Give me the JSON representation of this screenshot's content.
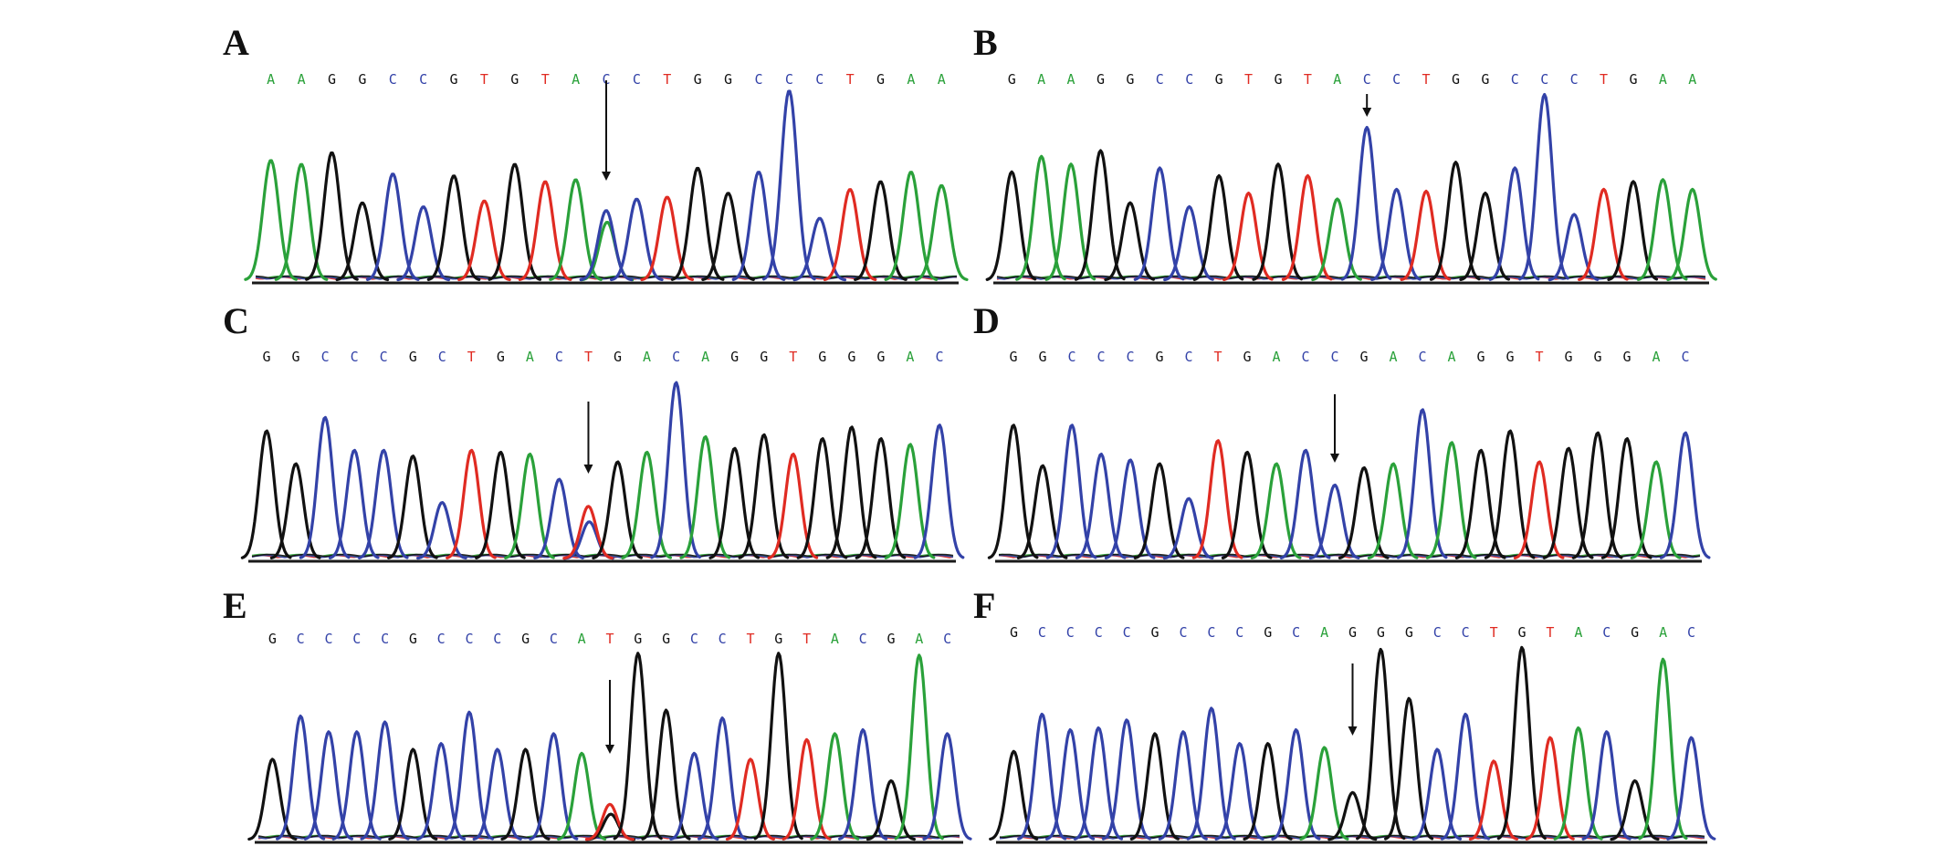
{
  "colors": {
    "A": "#2aa13a",
    "C": "#3342a8",
    "G": "#111111",
    "T": "#e02b22"
  },
  "panels": [
    {
      "id": "A",
      "label": "A",
      "sequence": [
        "A",
        "A",
        "G",
        "G",
        "C",
        "C",
        "G",
        "T",
        "G",
        "T",
        "A",
        "C",
        "C",
        "T",
        "G",
        "G",
        "C",
        "C",
        "C",
        "T",
        "G",
        "A",
        "A"
      ],
      "peaks": [
        {
          "b": "A",
          "h": 0.62
        },
        {
          "b": "A",
          "h": 0.6
        },
        {
          "b": "G",
          "h": 0.66
        },
        {
          "b": "G",
          "h": 0.4
        },
        {
          "b": "C",
          "h": 0.55
        },
        {
          "b": "C",
          "h": 0.38
        },
        {
          "b": "G",
          "h": 0.54
        },
        {
          "b": "T",
          "h": 0.41
        },
        {
          "b": "G",
          "h": 0.6
        },
        {
          "b": "T",
          "h": 0.51
        },
        {
          "b": "A",
          "h": 0.52
        },
        {
          "b": "C",
          "h": 0.36,
          "sec": {
            "b": "A",
            "h": 0.3
          }
        },
        {
          "b": "C",
          "h": 0.42
        },
        {
          "b": "T",
          "h": 0.43
        },
        {
          "b": "G",
          "h": 0.58
        },
        {
          "b": "G",
          "h": 0.45
        },
        {
          "b": "C",
          "h": 0.56
        },
        {
          "b": "C",
          "h": 0.98
        },
        {
          "b": "C",
          "h": 0.32
        },
        {
          "b": "T",
          "h": 0.47
        },
        {
          "b": "G",
          "h": 0.51
        },
        {
          "b": "A",
          "h": 0.56
        },
        {
          "b": "A",
          "h": 0.49
        }
      ],
      "arrow_index": 11
    },
    {
      "id": "B",
      "label": "B",
      "sequence": [
        "G",
        "A",
        "A",
        "G",
        "G",
        "C",
        "C",
        "G",
        "T",
        "G",
        "T",
        "A",
        "C",
        "C",
        "T",
        "G",
        "G",
        "C",
        "C",
        "C",
        "T",
        "G",
        "A",
        "A"
      ],
      "peaks": [
        {
          "b": "G",
          "h": 0.56
        },
        {
          "b": "A",
          "h": 0.64
        },
        {
          "b": "A",
          "h": 0.6
        },
        {
          "b": "G",
          "h": 0.67
        },
        {
          "b": "G",
          "h": 0.4
        },
        {
          "b": "C",
          "h": 0.58
        },
        {
          "b": "C",
          "h": 0.38
        },
        {
          "b": "G",
          "h": 0.54
        },
        {
          "b": "T",
          "h": 0.45
        },
        {
          "b": "G",
          "h": 0.6
        },
        {
          "b": "T",
          "h": 0.54
        },
        {
          "b": "A",
          "h": 0.42
        },
        {
          "b": "C",
          "h": 0.79
        },
        {
          "b": "C",
          "h": 0.47
        },
        {
          "b": "T",
          "h": 0.46
        },
        {
          "b": "G",
          "h": 0.61
        },
        {
          "b": "G",
          "h": 0.45
        },
        {
          "b": "C",
          "h": 0.58
        },
        {
          "b": "C",
          "h": 0.96
        },
        {
          "b": "C",
          "h": 0.34
        },
        {
          "b": "T",
          "h": 0.47
        },
        {
          "b": "G",
          "h": 0.51
        },
        {
          "b": "A",
          "h": 0.52
        },
        {
          "b": "A",
          "h": 0.47
        }
      ],
      "arrow_index": 12
    },
    {
      "id": "C",
      "label": "C",
      "sequence": [
        "G",
        "G",
        "C",
        "C",
        "C",
        "G",
        "C",
        "T",
        "G",
        "A",
        "C",
        "T",
        "G",
        "A",
        "C",
        "A",
        "G",
        "G",
        "T",
        "G",
        "G",
        "G",
        "A",
        "C"
      ],
      "peaks": [
        {
          "b": "G",
          "h": 0.66
        },
        {
          "b": "G",
          "h": 0.49
        },
        {
          "b": "C",
          "h": 0.73
        },
        {
          "b": "C",
          "h": 0.56
        },
        {
          "b": "C",
          "h": 0.56
        },
        {
          "b": "G",
          "h": 0.53
        },
        {
          "b": "C",
          "h": 0.29
        },
        {
          "b": "T",
          "h": 0.56
        },
        {
          "b": "G",
          "h": 0.55
        },
        {
          "b": "A",
          "h": 0.54
        },
        {
          "b": "C",
          "h": 0.41
        },
        {
          "b": "T",
          "h": 0.27,
          "sec": {
            "b": "C",
            "h": 0.19
          }
        },
        {
          "b": "G",
          "h": 0.5
        },
        {
          "b": "A",
          "h": 0.55
        },
        {
          "b": "C",
          "h": 0.91
        },
        {
          "b": "A",
          "h": 0.63
        },
        {
          "b": "G",
          "h": 0.57
        },
        {
          "b": "G",
          "h": 0.64
        },
        {
          "b": "T",
          "h": 0.54
        },
        {
          "b": "G",
          "h": 0.62
        },
        {
          "b": "G",
          "h": 0.68
        },
        {
          "b": "G",
          "h": 0.62
        },
        {
          "b": "A",
          "h": 0.59
        },
        {
          "b": "C",
          "h": 0.69
        }
      ],
      "arrow_index": 11
    },
    {
      "id": "D",
      "label": "D",
      "sequence": [
        "G",
        "G",
        "C",
        "C",
        "C",
        "G",
        "C",
        "T",
        "G",
        "A",
        "C",
        "C",
        "G",
        "A",
        "C",
        "A",
        "G",
        "G",
        "T",
        "G",
        "G",
        "G",
        "A",
        "C"
      ],
      "peaks": [
        {
          "b": "G",
          "h": 0.69
        },
        {
          "b": "G",
          "h": 0.48
        },
        {
          "b": "C",
          "h": 0.69
        },
        {
          "b": "C",
          "h": 0.54
        },
        {
          "b": "C",
          "h": 0.51
        },
        {
          "b": "G",
          "h": 0.49
        },
        {
          "b": "C",
          "h": 0.31
        },
        {
          "b": "T",
          "h": 0.61
        },
        {
          "b": "G",
          "h": 0.55
        },
        {
          "b": "A",
          "h": 0.49
        },
        {
          "b": "C",
          "h": 0.56
        },
        {
          "b": "C",
          "h": 0.38
        },
        {
          "b": "G",
          "h": 0.47
        },
        {
          "b": "A",
          "h": 0.49
        },
        {
          "b": "C",
          "h": 0.77
        },
        {
          "b": "A",
          "h": 0.6
        },
        {
          "b": "G",
          "h": 0.56
        },
        {
          "b": "G",
          "h": 0.66
        },
        {
          "b": "T",
          "h": 0.5
        },
        {
          "b": "G",
          "h": 0.57
        },
        {
          "b": "G",
          "h": 0.65
        },
        {
          "b": "G",
          "h": 0.62
        },
        {
          "b": "A",
          "h": 0.5
        },
        {
          "b": "C",
          "h": 0.65
        }
      ],
      "arrow_index": 11
    },
    {
      "id": "E",
      "label": "E",
      "sequence": [
        "G",
        "C",
        "C",
        "C",
        "C",
        "G",
        "C",
        "C",
        "C",
        "G",
        "C",
        "A",
        "T",
        "G",
        "G",
        "C",
        "C",
        "T",
        "G",
        "T",
        "A",
        "C",
        "G",
        "A",
        "C"
      ],
      "peaks": [
        {
          "b": "G",
          "h": 0.41
        },
        {
          "b": "C",
          "h": 0.63
        },
        {
          "b": "C",
          "h": 0.55
        },
        {
          "b": "C",
          "h": 0.55
        },
        {
          "b": "C",
          "h": 0.6
        },
        {
          "b": "G",
          "h": 0.46
        },
        {
          "b": "C",
          "h": 0.49
        },
        {
          "b": "C",
          "h": 0.65
        },
        {
          "b": "C",
          "h": 0.46
        },
        {
          "b": "G",
          "h": 0.46
        },
        {
          "b": "C",
          "h": 0.54
        },
        {
          "b": "A",
          "h": 0.44
        },
        {
          "b": "T",
          "h": 0.18,
          "sec": {
            "b": "G",
            "h": 0.13
          }
        },
        {
          "b": "G",
          "h": 0.95
        },
        {
          "b": "G",
          "h": 0.66
        },
        {
          "b": "C",
          "h": 0.44
        },
        {
          "b": "C",
          "h": 0.62
        },
        {
          "b": "T",
          "h": 0.41
        },
        {
          "b": "G",
          "h": 0.95
        },
        {
          "b": "T",
          "h": 0.51
        },
        {
          "b": "A",
          "h": 0.54
        },
        {
          "b": "C",
          "h": 0.56
        },
        {
          "b": "G",
          "h": 0.3
        },
        {
          "b": "A",
          "h": 0.94
        },
        {
          "b": "C",
          "h": 0.54
        }
      ],
      "arrow_index": 12
    },
    {
      "id": "F",
      "label": "F",
      "sequence": [
        "G",
        "C",
        "C",
        "C",
        "C",
        "G",
        "C",
        "C",
        "C",
        "G",
        "C",
        "A",
        "G",
        "G",
        "G",
        "C",
        "C",
        "T",
        "G",
        "T",
        "A",
        "C",
        "G",
        "A",
        "C"
      ],
      "peaks": [
        {
          "b": "G",
          "h": 0.45
        },
        {
          "b": "C",
          "h": 0.64
        },
        {
          "b": "C",
          "h": 0.56
        },
        {
          "b": "C",
          "h": 0.57
        },
        {
          "b": "C",
          "h": 0.61
        },
        {
          "b": "G",
          "h": 0.54
        },
        {
          "b": "C",
          "h": 0.55
        },
        {
          "b": "C",
          "h": 0.67
        },
        {
          "b": "C",
          "h": 0.49
        },
        {
          "b": "G",
          "h": 0.49
        },
        {
          "b": "C",
          "h": 0.56
        },
        {
          "b": "A",
          "h": 0.47
        },
        {
          "b": "G",
          "h": 0.24
        },
        {
          "b": "G",
          "h": 0.97
        },
        {
          "b": "G",
          "h": 0.72
        },
        {
          "b": "C",
          "h": 0.46
        },
        {
          "b": "C",
          "h": 0.64
        },
        {
          "b": "T",
          "h": 0.4
        },
        {
          "b": "G",
          "h": 0.98
        },
        {
          "b": "T",
          "h": 0.52
        },
        {
          "b": "A",
          "h": 0.57
        },
        {
          "b": "C",
          "h": 0.55
        },
        {
          "b": "G",
          "h": 0.3
        },
        {
          "b": "A",
          "h": 0.92
        },
        {
          "b": "C",
          "h": 0.52
        }
      ],
      "arrow_index": 12
    }
  ]
}
